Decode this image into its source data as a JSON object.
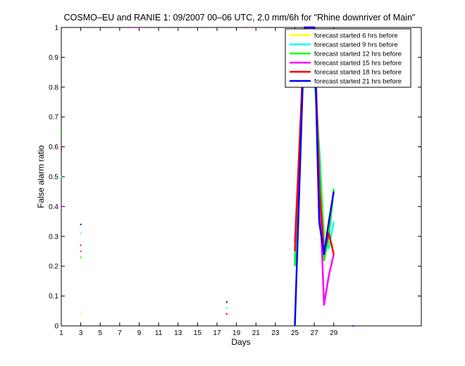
{
  "chart_data": {
    "type": "line",
    "title": "COSMO–EU and RANIE 1: 09/2007 00–06 UTC, 2.0 mm/6h for \"Rhine downriver of Main\"",
    "xlabel": "Days",
    "ylabel": "False alarm ratio",
    "xlim": [
      1,
      38
    ],
    "ylim": [
      0,
      1
    ],
    "x_ticks": [
      1,
      3,
      5,
      7,
      9,
      11,
      13,
      15,
      17,
      19,
      21,
      23,
      25,
      27,
      29
    ],
    "y_ticks": [
      0,
      0.1,
      0.2,
      0.3,
      0.4,
      0.5,
      0.6,
      0.7,
      0.8,
      0.9,
      1
    ],
    "y_tick_labels": [
      "0",
      "0.1",
      "0.2",
      "0.3",
      "0.4",
      "0.5",
      "0.6",
      "0.7",
      "0.8",
      "0.9",
      "1"
    ],
    "legend_position": "top-right",
    "grid": false,
    "series": [
      {
        "name": "forecast started 6 hrs before",
        "color": "#ffff00",
        "isolated_points": [
          [
            3,
            0.04
          ],
          [
            18,
            0.04
          ],
          [
            31,
            0.0
          ]
        ],
        "line": [
          [
            25,
            0.25
          ],
          [
            26,
            1.0
          ],
          [
            27,
            0.9
          ],
          [
            27.5,
            0.6
          ],
          [
            28,
            0.33
          ],
          [
            28.5,
            0.27
          ],
          [
            29,
            0.27
          ]
        ]
      },
      {
        "name": "forecast started 9 hrs before",
        "color": "#00ffff",
        "isolated_points": [
          [
            1,
            0.5
          ],
          [
            3,
            0.31
          ],
          [
            18,
            0.06
          ]
        ],
        "line": [
          [
            25,
            0.22
          ],
          [
            26,
            1.0
          ],
          [
            27,
            0.85
          ],
          [
            27.5,
            0.6
          ],
          [
            28,
            0.29
          ],
          [
            28.5,
            0.26
          ],
          [
            29,
            0.35
          ]
        ]
      },
      {
        "name": "forecast started 12 hrs before",
        "color": "#00ff00",
        "isolated_points": [
          [
            1,
            0.65
          ],
          [
            3,
            0.23
          ],
          [
            18,
            0.0
          ]
        ],
        "line": [
          [
            25,
            0.2
          ],
          [
            26,
            0.98
          ],
          [
            27,
            0.85
          ],
          [
            27.5,
            0.58
          ],
          [
            28,
            0.22
          ],
          [
            28.5,
            0.3
          ],
          [
            29,
            0.46
          ]
        ]
      },
      {
        "name": "forecast started 15 hrs before",
        "color": "#ff00ff",
        "isolated_points": [
          [
            1,
            0.4
          ],
          [
            3,
            0.25
          ],
          [
            8,
            1.0
          ],
          [
            9,
            1.0
          ],
          [
            18,
            0.04
          ],
          [
            20,
            1.0
          ]
        ],
        "line": [
          [
            25,
            0.28
          ],
          [
            26,
            0.95
          ],
          [
            27,
            0.98
          ],
          [
            27.5,
            0.5
          ],
          [
            28,
            0.07
          ],
          [
            28.5,
            0.17
          ],
          [
            29,
            0.24
          ]
        ]
      },
      {
        "name": "forecast started 18 hrs before",
        "color": "#ff0000",
        "isolated_points": [
          [
            1,
            0.59
          ],
          [
            3,
            0.27
          ],
          [
            18,
            0.04
          ]
        ],
        "line": [
          [
            25,
            0.25
          ],
          [
            26,
            1.0
          ],
          [
            27,
            1.0
          ],
          [
            27.5,
            0.47
          ],
          [
            28,
            0.25
          ],
          [
            28.5,
            0.31
          ],
          [
            29,
            0.24
          ]
        ]
      },
      {
        "name": "forecast started 21 hrs before",
        "color": "#0000ff",
        "isolated_points": [
          [
            3,
            0.34
          ],
          [
            18,
            0.08
          ],
          [
            31,
            0.0
          ]
        ],
        "line": [
          [
            25,
            0.0
          ],
          [
            26,
            1.0
          ],
          [
            27,
            1.0
          ],
          [
            27.5,
            0.35
          ],
          [
            28,
            0.24
          ],
          [
            28.5,
            0.35
          ],
          [
            29,
            0.45
          ]
        ]
      }
    ]
  }
}
